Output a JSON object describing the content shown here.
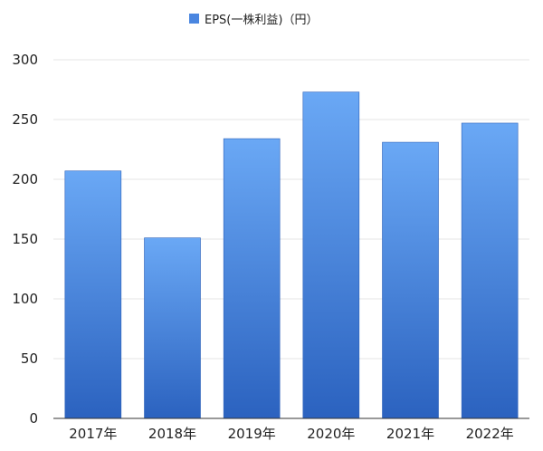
{
  "chart_data": {
    "type": "bar",
    "categories": [
      "2017年",
      "2018年",
      "2019年",
      "2020年",
      "2021年",
      "2022年"
    ],
    "series": [
      {
        "name": "EPS(一株利益)（円）",
        "values": [
          207,
          151,
          234,
          273,
          231,
          247
        ]
      }
    ],
    "ylim": [
      0,
      300
    ],
    "yticks": [
      0,
      50,
      100,
      150,
      200,
      250,
      300
    ],
    "grid": true,
    "legend": "top-center",
    "colors": {
      "bar_top": "#6aa8f5",
      "bar_bottom": "#2b62bf",
      "legend_swatch": "#4a86e0"
    }
  }
}
